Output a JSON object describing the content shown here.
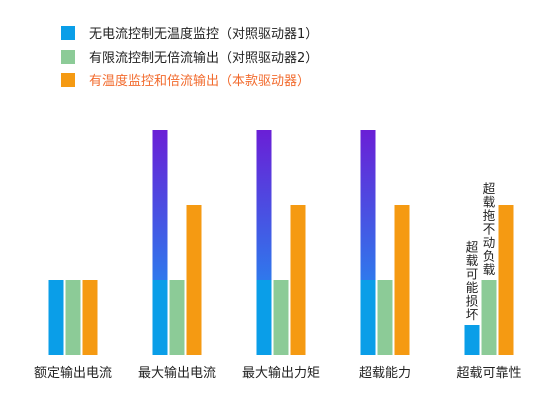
{
  "chart_data": {
    "type": "bar",
    "categories": [
      "额定输出电流",
      "最大输出电流",
      "最大输出力矩",
      "超载能力",
      "超载可靠性"
    ],
    "series": [
      {
        "name": "无电流控制无温度监控（对照驱动器1）",
        "color": "#0a9ee8",
        "values": [
          75,
          75,
          75,
          75,
          30
        ],
        "extension": [
          0,
          150,
          150,
          150,
          0
        ],
        "extension_gradient": [
          "#6a1fd6",
          "#2f78ec"
        ]
      },
      {
        "name": "有限流控制无倍流输出（对照驱动器2）",
        "color": "#8ccb97",
        "values": [
          75,
          75,
          75,
          75,
          75
        ]
      },
      {
        "name": "有温度监控和倍流输出（本款驱动器）",
        "color": "#f59a12",
        "label_color": "#f26b2e",
        "values": [
          75,
          150,
          150,
          150,
          150
        ]
      }
    ],
    "annotations": [
      {
        "category_index": 4,
        "series_index": 0,
        "text": "超载可能损坏"
      },
      {
        "category_index": 4,
        "series_index": 1,
        "text": "超载拖不动负载"
      }
    ],
    "ylim": [
      0,
      225
    ]
  }
}
